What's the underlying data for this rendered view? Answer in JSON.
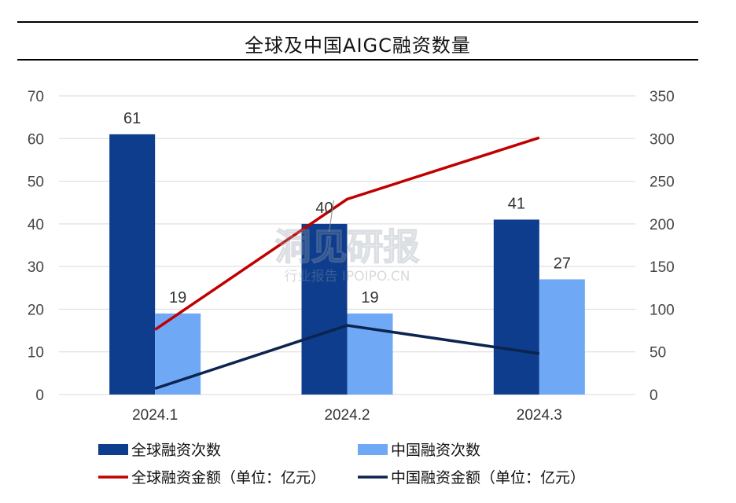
{
  "chart_data": {
    "type": "bar",
    "title": "全球及中国AIGC融资数量",
    "categories": [
      "2024.1",
      "2024.2",
      "2024.3"
    ],
    "series": [
      {
        "name": "全球融资次数",
        "kind": "bar",
        "axis": "left",
        "color": "#0D3D8C",
        "values": [
          61,
          40,
          41
        ]
      },
      {
        "name": "中国融资次数",
        "kind": "bar",
        "axis": "left",
        "color": "#6FA8F5",
        "values": [
          19,
          19,
          27
        ]
      },
      {
        "name": "全球融资金额（单位：亿元）",
        "kind": "line",
        "axis": "right",
        "color": "#C00000",
        "values": [
          76,
          229,
          301
        ]
      },
      {
        "name": "中国融资金额（单位：亿元）",
        "kind": "line",
        "axis": "right",
        "color": "#0B2450",
        "values": [
          7,
          81,
          48
        ]
      }
    ],
    "y_left": {
      "min": 0,
      "max": 70,
      "ticks": [
        0,
        10,
        20,
        30,
        40,
        50,
        60,
        70
      ]
    },
    "y_right": {
      "min": 0,
      "max": 350,
      "ticks": [
        0,
        50,
        100,
        150,
        200,
        250,
        300,
        350
      ]
    },
    "grid": true,
    "legend_position": "bottom"
  },
  "watermark": {
    "main": "洞见研报",
    "sub": "行业报告 IPOIPO.CN"
  }
}
